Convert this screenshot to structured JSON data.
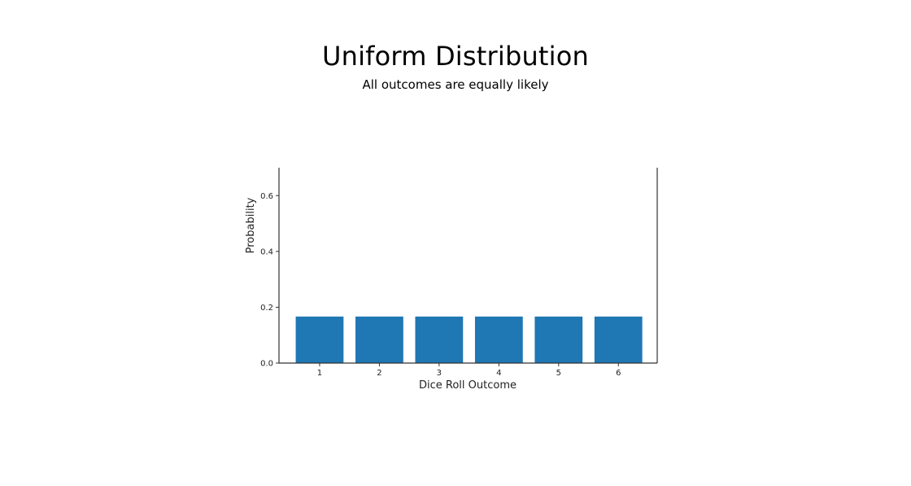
{
  "slide": {
    "title": "Uniform Distribution",
    "subtitle": "All outcomes are equally likely"
  },
  "chart_data": {
    "type": "bar",
    "categories": [
      "1",
      "2",
      "3",
      "4",
      "5",
      "6"
    ],
    "values": [
      0.1667,
      0.1667,
      0.1667,
      0.1667,
      0.1667,
      0.1667
    ],
    "xlabel": "Dice Roll Outcome",
    "ylabel": "Probability",
    "ylim": [
      0,
      0.7
    ],
    "yticks": [
      "0.0",
      "0.2",
      "0.4",
      "0.6"
    ],
    "bar_color": "#1f77b4",
    "axis_color": "#333333",
    "grid": false,
    "legend": "none"
  }
}
